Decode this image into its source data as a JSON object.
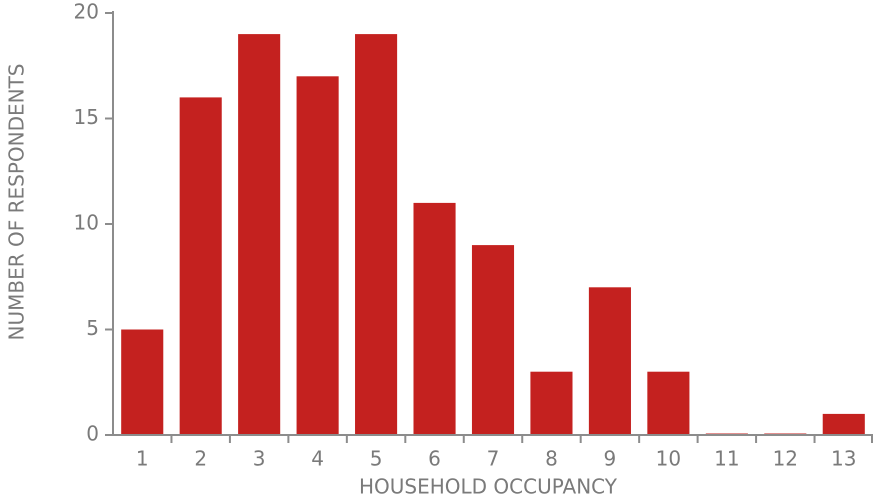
{
  "chart_data": {
    "type": "bar",
    "x_label": "HOUSEHOLD OCCUPANCY",
    "y_label": "NUMBER OF RESPONDENTS",
    "categories": [
      "1",
      "2",
      "3",
      "4",
      "5",
      "6",
      "7",
      "8",
      "9",
      "10",
      "11",
      "12",
      "13"
    ],
    "values": [
      5,
      16,
      19,
      17,
      19,
      11,
      9,
      3,
      7,
      3,
      0,
      0,
      1
    ],
    "color": "#c4211f",
    "ylim": [
      0,
      20
    ],
    "yticks": [
      0,
      5,
      10,
      15,
      20
    ],
    "grid": false
  }
}
